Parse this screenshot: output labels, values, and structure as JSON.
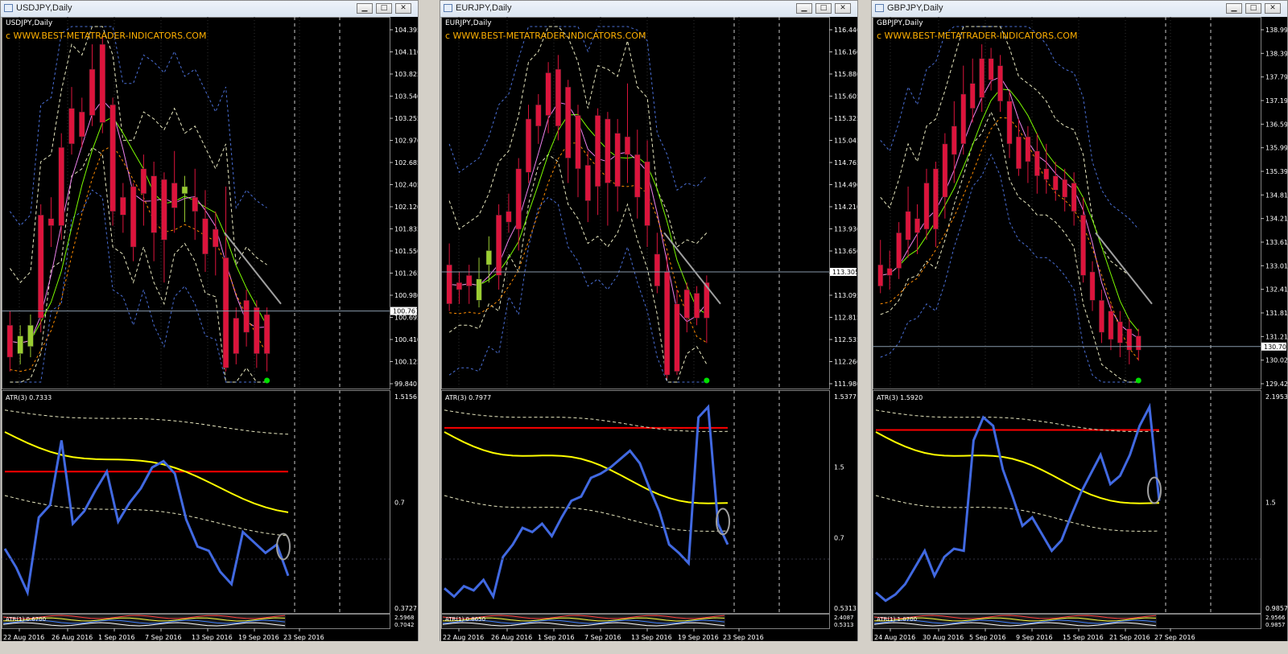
{
  "windows": [
    {
      "title": "USDJPY,Daily",
      "chart_label": "USDJPY,Daily",
      "watermark": "c  WWW.BEST-METATRADER-INDICATORS.COM",
      "price_labels": [
        "104.395",
        "104.110",
        "103.825",
        "103.540",
        "103.255",
        "102.970",
        "102.685",
        "102.405",
        "102.120",
        "101.835",
        "101.550",
        "101.265",
        "100.980",
        "100.695",
        "100.410",
        "100.125",
        "99.840"
      ],
      "current_price": "100.767",
      "atr_label": "ATR(3) 0.7333",
      "atr_scale": [
        "1.5156",
        "0.7",
        "0.3727"
      ],
      "sub2_label": "ATR(1) 0.6700",
      "sub2_scale": [
        "2.5968",
        "0.7042"
      ],
      "dates": [
        "22 Aug 2016",
        "26 Aug 2016",
        "1 Sep 2016",
        "7 Sep 2016",
        "13 Sep 2016",
        "19 Sep 2016",
        "23 Sep 2016"
      ]
    },
    {
      "title": "EURJPY,Daily",
      "chart_label": "EURJPY,Daily",
      "watermark": "c  WWW.BEST-METATRADER-INDICATORS.COM",
      "price_labels": [
        "116.440",
        "116.160",
        "115.880",
        "115.605",
        "115.325",
        "115.045",
        "114.765",
        "114.490",
        "114.210",
        "113.930",
        "113.650",
        "113.375",
        "113.095",
        "112.815",
        "112.535",
        "112.260",
        "111.980"
      ],
      "current_price": "113.305",
      "atr_label": "ATR(3) 0.7977",
      "atr_scale": [
        "1.5377",
        "1.5",
        "0.7",
        "0.5313"
      ],
      "sub2_label": "ATR(1) 0.8650",
      "sub2_scale": [
        "2.4087",
        "0.5313"
      ],
      "dates": [
        "22 Aug 2016",
        "26 Aug 2016",
        "1 Sep 2016",
        "7 Sep 2016",
        "13 Sep 2016",
        "19 Sep 2016",
        "23 Sep 2016"
      ]
    },
    {
      "title": "GBPJPY,Daily",
      "chart_label": "GBPJPY,Daily",
      "watermark": "c  WWW.BEST-METATRADER-INDICATORS.COM",
      "price_labels": [
        "138.995",
        "138.395",
        "137.795",
        "137.195",
        "136.595",
        "135.995",
        "135.395",
        "134.810",
        "134.210",
        "133.610",
        "133.010",
        "132.410",
        "131.810",
        "131.210",
        "130.025",
        "129.425"
      ],
      "current_price": "130.702",
      "atr_label": "ATR(3) 1.5920",
      "atr_scale": [
        "2.1953",
        "1.5",
        "0.9857"
      ],
      "sub2_label": "ATR(1) 1.0700",
      "sub2_scale": [
        "2.9566",
        "0.9857"
      ],
      "dates": [
        "24 Aug 2016",
        "30 Aug 2016",
        "5 Sep 2016",
        "9 Sep 2016",
        "15 Sep 2016",
        "21 Sep 2016",
        "27 Sep 2016"
      ]
    }
  ],
  "colors": {
    "background": "#000000",
    "bull_candle": "#9acd32",
    "bear_candle": "#dc143c",
    "watermark": "#ffb000",
    "atr_line": "#4169e1",
    "atr_signal": "#ffff00",
    "level_line": "#ff0000"
  }
}
